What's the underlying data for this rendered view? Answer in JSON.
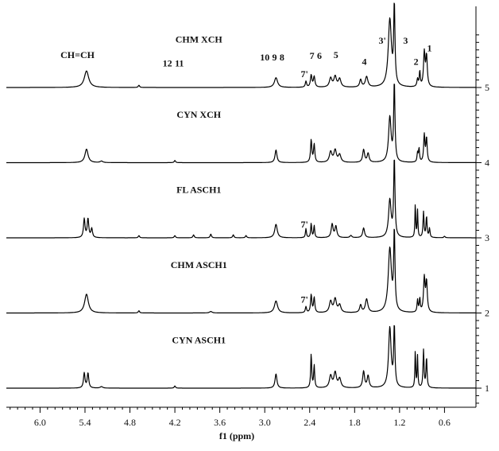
{
  "chart_data": {
    "type": "line",
    "title": "",
    "xlabel": "f1 (ppm)",
    "ylabel": "",
    "x_reversed": true,
    "xlim": [
      6.45,
      0.18
    ],
    "x_ticks": [
      "6.0",
      "5.4",
      "4.8",
      "4.2",
      "3.6",
      "3.0",
      "2.4",
      "1.8",
      "1.2",
      "0.6"
    ],
    "y_ticks": [
      "1",
      "2",
      "3",
      "4",
      "5"
    ],
    "grid": false,
    "legend": "none",
    "line_color": "#000000",
    "series": [
      {
        "name": "CHM XCH",
        "offset": 5,
        "peaks": [
          {
            "x": 5.38,
            "h": 0.22,
            "w": 0.035
          },
          {
            "x": 4.68,
            "h": 0.03,
            "w": 0.01
          },
          {
            "x": 2.85,
            "h": 0.13,
            "w": 0.025
          },
          {
            "x": 2.45,
            "h": 0.08,
            "w": 0.01
          },
          {
            "x": 2.38,
            "h": 0.16,
            "w": 0.012
          },
          {
            "x": 2.34,
            "h": 0.14,
            "w": 0.012
          },
          {
            "x": 2.12,
            "h": 0.12,
            "w": 0.02
          },
          {
            "x": 2.06,
            "h": 0.14,
            "w": 0.02
          },
          {
            "x": 2.0,
            "h": 0.11,
            "w": 0.02
          },
          {
            "x": 1.72,
            "h": 0.1,
            "w": 0.015
          },
          {
            "x": 1.64,
            "h": 0.14,
            "w": 0.02
          },
          {
            "x": 1.33,
            "h": 0.9,
            "w": 0.025
          },
          {
            "x": 1.27,
            "h": 1.05,
            "w": 0.01
          },
          {
            "x": 0.96,
            "h": 0.1,
            "w": 0.01
          },
          {
            "x": 0.93,
            "h": 0.2,
            "w": 0.008
          },
          {
            "x": 0.87,
            "h": 0.45,
            "w": 0.012
          },
          {
            "x": 0.84,
            "h": 0.4,
            "w": 0.012
          }
        ]
      },
      {
        "name": "CYN XCH",
        "offset": 4,
        "peaks": [
          {
            "x": 5.38,
            "h": 0.18,
            "w": 0.025
          },
          {
            "x": 5.18,
            "h": 0.02,
            "w": 0.02
          },
          {
            "x": 4.2,
            "h": 0.03,
            "w": 0.01
          },
          {
            "x": 2.85,
            "h": 0.17,
            "w": 0.015
          },
          {
            "x": 2.38,
            "h": 0.3,
            "w": 0.01
          },
          {
            "x": 2.34,
            "h": 0.24,
            "w": 0.01
          },
          {
            "x": 2.12,
            "h": 0.14,
            "w": 0.02
          },
          {
            "x": 2.06,
            "h": 0.16,
            "w": 0.02
          },
          {
            "x": 2.0,
            "h": 0.1,
            "w": 0.02
          },
          {
            "x": 1.68,
            "h": 0.17,
            "w": 0.015
          },
          {
            "x": 1.62,
            "h": 0.12,
            "w": 0.015
          },
          {
            "x": 1.33,
            "h": 0.6,
            "w": 0.02
          },
          {
            "x": 1.27,
            "h": 1.05,
            "w": 0.01
          },
          {
            "x": 0.96,
            "h": 0.12,
            "w": 0.008
          },
          {
            "x": 0.94,
            "h": 0.18,
            "w": 0.008
          },
          {
            "x": 0.87,
            "h": 0.36,
            "w": 0.01
          },
          {
            "x": 0.84,
            "h": 0.32,
            "w": 0.01
          }
        ]
      },
      {
        "name": "FL ASCH1",
        "offset": 3,
        "peaks": [
          {
            "x": 5.41,
            "h": 0.25,
            "w": 0.012
          },
          {
            "x": 5.36,
            "h": 0.25,
            "w": 0.012
          },
          {
            "x": 5.31,
            "h": 0.12,
            "w": 0.012
          },
          {
            "x": 4.68,
            "h": 0.03,
            "w": 0.01
          },
          {
            "x": 4.2,
            "h": 0.03,
            "w": 0.01
          },
          {
            "x": 3.95,
            "h": 0.04,
            "w": 0.01
          },
          {
            "x": 3.72,
            "h": 0.05,
            "w": 0.01
          },
          {
            "x": 3.42,
            "h": 0.04,
            "w": 0.01
          },
          {
            "x": 3.25,
            "h": 0.03,
            "w": 0.01
          },
          {
            "x": 2.85,
            "h": 0.18,
            "w": 0.02
          },
          {
            "x": 2.45,
            "h": 0.12,
            "w": 0.008
          },
          {
            "x": 2.38,
            "h": 0.19,
            "w": 0.008
          },
          {
            "x": 2.34,
            "h": 0.16,
            "w": 0.008
          },
          {
            "x": 2.1,
            "h": 0.18,
            "w": 0.015
          },
          {
            "x": 2.05,
            "h": 0.15,
            "w": 0.015
          },
          {
            "x": 1.85,
            "h": 0.03,
            "w": 0.015
          },
          {
            "x": 1.68,
            "h": 0.13,
            "w": 0.015
          },
          {
            "x": 1.33,
            "h": 0.5,
            "w": 0.02
          },
          {
            "x": 1.27,
            "h": 1.05,
            "w": 0.01
          },
          {
            "x": 0.99,
            "h": 0.45,
            "w": 0.006
          },
          {
            "x": 0.96,
            "h": 0.36,
            "w": 0.006
          },
          {
            "x": 0.88,
            "h": 0.34,
            "w": 0.008
          },
          {
            "x": 0.84,
            "h": 0.28,
            "w": 0.008
          },
          {
            "x": 0.8,
            "h": 0.12,
            "w": 0.008
          },
          {
            "x": 0.6,
            "h": 0.02,
            "w": 0.01
          }
        ]
      },
      {
        "name": "CHM ASCH1",
        "offset": 2,
        "peaks": [
          {
            "x": 5.38,
            "h": 0.25,
            "w": 0.03
          },
          {
            "x": 4.68,
            "h": 0.03,
            "w": 0.01
          },
          {
            "x": 3.72,
            "h": 0.02,
            "w": 0.02
          },
          {
            "x": 2.85,
            "h": 0.16,
            "w": 0.025
          },
          {
            "x": 2.45,
            "h": 0.08,
            "w": 0.01
          },
          {
            "x": 2.38,
            "h": 0.24,
            "w": 0.01
          },
          {
            "x": 2.34,
            "h": 0.2,
            "w": 0.01
          },
          {
            "x": 2.12,
            "h": 0.15,
            "w": 0.02
          },
          {
            "x": 2.06,
            "h": 0.18,
            "w": 0.02
          },
          {
            "x": 2.0,
            "h": 0.1,
            "w": 0.02
          },
          {
            "x": 1.72,
            "h": 0.1,
            "w": 0.015
          },
          {
            "x": 1.64,
            "h": 0.18,
            "w": 0.02
          },
          {
            "x": 1.33,
            "h": 0.85,
            "w": 0.025
          },
          {
            "x": 1.27,
            "h": 1.05,
            "w": 0.01
          },
          {
            "x": 0.96,
            "h": 0.16,
            "w": 0.008
          },
          {
            "x": 0.93,
            "h": 0.18,
            "w": 0.008
          },
          {
            "x": 0.87,
            "h": 0.45,
            "w": 0.012
          },
          {
            "x": 0.84,
            "h": 0.4,
            "w": 0.012
          }
        ]
      },
      {
        "name": "CYN ASCH1",
        "offset": 1,
        "peaks": [
          {
            "x": 5.41,
            "h": 0.2,
            "w": 0.012
          },
          {
            "x": 5.36,
            "h": 0.2,
            "w": 0.012
          },
          {
            "x": 5.18,
            "h": 0.02,
            "w": 0.02
          },
          {
            "x": 4.2,
            "h": 0.03,
            "w": 0.01
          },
          {
            "x": 2.85,
            "h": 0.19,
            "w": 0.015
          },
          {
            "x": 2.38,
            "h": 0.45,
            "w": 0.008
          },
          {
            "x": 2.34,
            "h": 0.3,
            "w": 0.008
          },
          {
            "x": 2.12,
            "h": 0.16,
            "w": 0.02
          },
          {
            "x": 2.06,
            "h": 0.2,
            "w": 0.02
          },
          {
            "x": 2.0,
            "h": 0.12,
            "w": 0.02
          },
          {
            "x": 1.68,
            "h": 0.22,
            "w": 0.015
          },
          {
            "x": 1.62,
            "h": 0.16,
            "w": 0.015
          },
          {
            "x": 1.33,
            "h": 0.8,
            "w": 0.02
          },
          {
            "x": 1.27,
            "h": 0.8,
            "w": 0.01
          },
          {
            "x": 0.99,
            "h": 0.5,
            "w": 0.006
          },
          {
            "x": 0.96,
            "h": 0.42,
            "w": 0.006
          },
          {
            "x": 0.88,
            "h": 0.5,
            "w": 0.008
          },
          {
            "x": 0.84,
            "h": 0.4,
            "w": 0.008
          }
        ]
      }
    ],
    "annotations": [
      {
        "text": "CH=CH",
        "x": 5.5,
        "y": 5.39
      },
      {
        "text": "12",
        "x": 4.3,
        "y": 5.28
      },
      {
        "text": "11",
        "x": 4.14,
        "y": 5.28
      },
      {
        "text": "10",
        "x": 3.0,
        "y": 5.36
      },
      {
        "text": "9",
        "x": 2.87,
        "y": 5.36
      },
      {
        "text": "8",
        "x": 2.77,
        "y": 5.36
      },
      {
        "text": "7'",
        "x": 2.47,
        "y": 5.14
      },
      {
        "text": "7",
        "x": 2.37,
        "y": 5.38
      },
      {
        "text": "6",
        "x": 2.27,
        "y": 5.38
      },
      {
        "text": "5",
        "x": 2.05,
        "y": 5.39
      },
      {
        "text": "4",
        "x": 1.67,
        "y": 5.3
      },
      {
        "text": "3'",
        "x": 1.43,
        "y": 5.58
      },
      {
        "text": "3",
        "x": 1.12,
        "y": 5.58
      },
      {
        "text": "2",
        "x": 0.98,
        "y": 5.3
      },
      {
        "text": "1",
        "x": 0.8,
        "y": 5.48
      },
      {
        "text": "7'",
        "x": 2.47,
        "y": 3.14
      },
      {
        "text": "7'",
        "x": 2.47,
        "y": 2.14
      }
    ]
  }
}
